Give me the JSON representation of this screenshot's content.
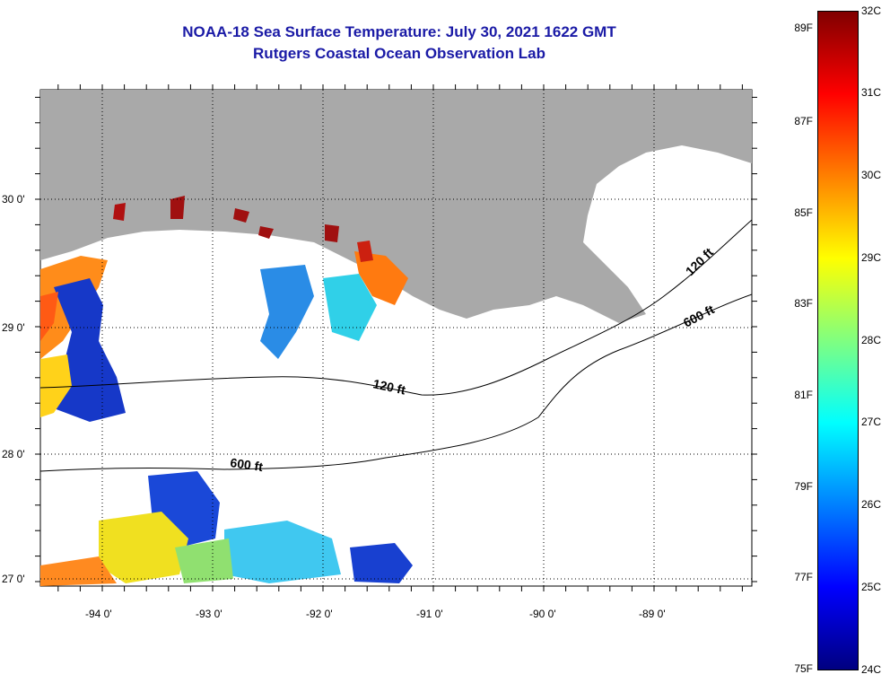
{
  "title": {
    "line1": "NOAA-18 Sea Surface Temperature:  July 30, 2021 1622 GMT",
    "line2": "Rutgers Coastal Ocean Observation Lab"
  },
  "map": {
    "lat_labels": [
      "30 0'",
      "29 0'",
      "28 0'",
      "27 0'"
    ],
    "lon_labels": [
      "-94 0'",
      "-93 0'",
      "-92 0'",
      "-91 0'",
      "-90 0'",
      "-89 0'"
    ],
    "lon_range": [
      -94.5,
      -88.0
    ],
    "lat_range": [
      26.9,
      30.85
    ],
    "contours": [
      {
        "label": "120 ft"
      },
      {
        "label": "600 ft"
      }
    ],
    "colors": {
      "land": "#a9a9a9",
      "no_data": "#ffffff",
      "grid": "#000000"
    }
  },
  "colorbar": {
    "fahrenheit": [
      "89F",
      "87F",
      "85F",
      "83F",
      "81F",
      "79F",
      "77F",
      "75F"
    ],
    "celsius": [
      "32C",
      "31C",
      "30C",
      "29C",
      "28C",
      "27C",
      "26C",
      "25C",
      "24C"
    ],
    "stops": [
      "#800000",
      "#ff0000",
      "#ff8000",
      "#ffff00",
      "#80ff80",
      "#00ffff",
      "#0080ff",
      "#0000ff",
      "#000080"
    ]
  }
}
